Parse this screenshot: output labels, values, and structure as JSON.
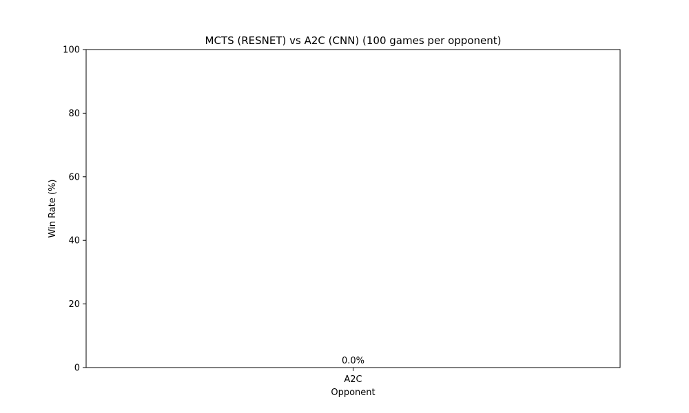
{
  "chart_data": {
    "type": "bar",
    "title": "MCTS (RESNET) vs A2C (CNN) (100 games per opponent)",
    "xlabel": "Opponent",
    "ylabel": "Win Rate (%)",
    "categories": [
      "A2C"
    ],
    "values": [
      0.0
    ],
    "value_labels": [
      "0.0%"
    ],
    "ylim": [
      0,
      100
    ],
    "yticks": [
      0,
      20,
      40,
      60,
      80,
      100
    ],
    "grid": false,
    "legend": "none",
    "bar_color": "#1f77b4"
  }
}
